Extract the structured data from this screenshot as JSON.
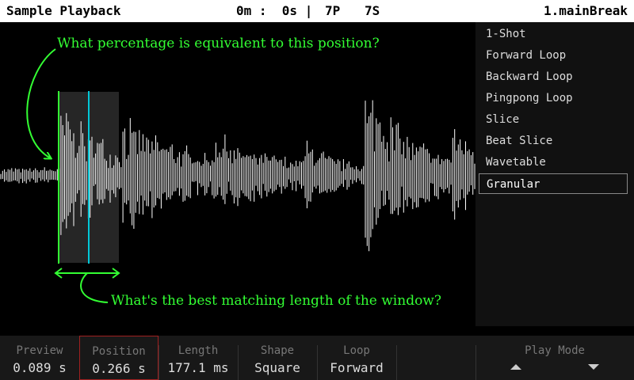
{
  "header": {
    "title": "Sample Playback",
    "time": "0m :  0s |",
    "patterns": "7P",
    "songs": "7S",
    "bank": "1.mainBreak"
  },
  "loop_modes": {
    "items": [
      "1-Shot",
      "Forward Loop",
      "Backward Loop",
      "Pingpong Loop",
      "Slice",
      "Beat Slice",
      "Wavetable",
      "Granular"
    ],
    "selected": "Granular"
  },
  "params": [
    {
      "label": "Preview",
      "value": "0.089 s"
    },
    {
      "label": "Position",
      "value": "0.266 s"
    },
    {
      "label": "Length",
      "value": "177.1 ms"
    },
    {
      "label": "Shape",
      "value": "Square"
    },
    {
      "label": "Loop",
      "value": "Forward"
    }
  ],
  "play_mode": {
    "label": "Play Mode"
  },
  "annotations": {
    "position_question": "What percentage is equivalent to this position?",
    "length_question": "What's the best matching length of the window?"
  },
  "colors": {
    "annotation": "#33ff33",
    "playhead": "#00c8d8",
    "focus_border": "#a02020"
  }
}
